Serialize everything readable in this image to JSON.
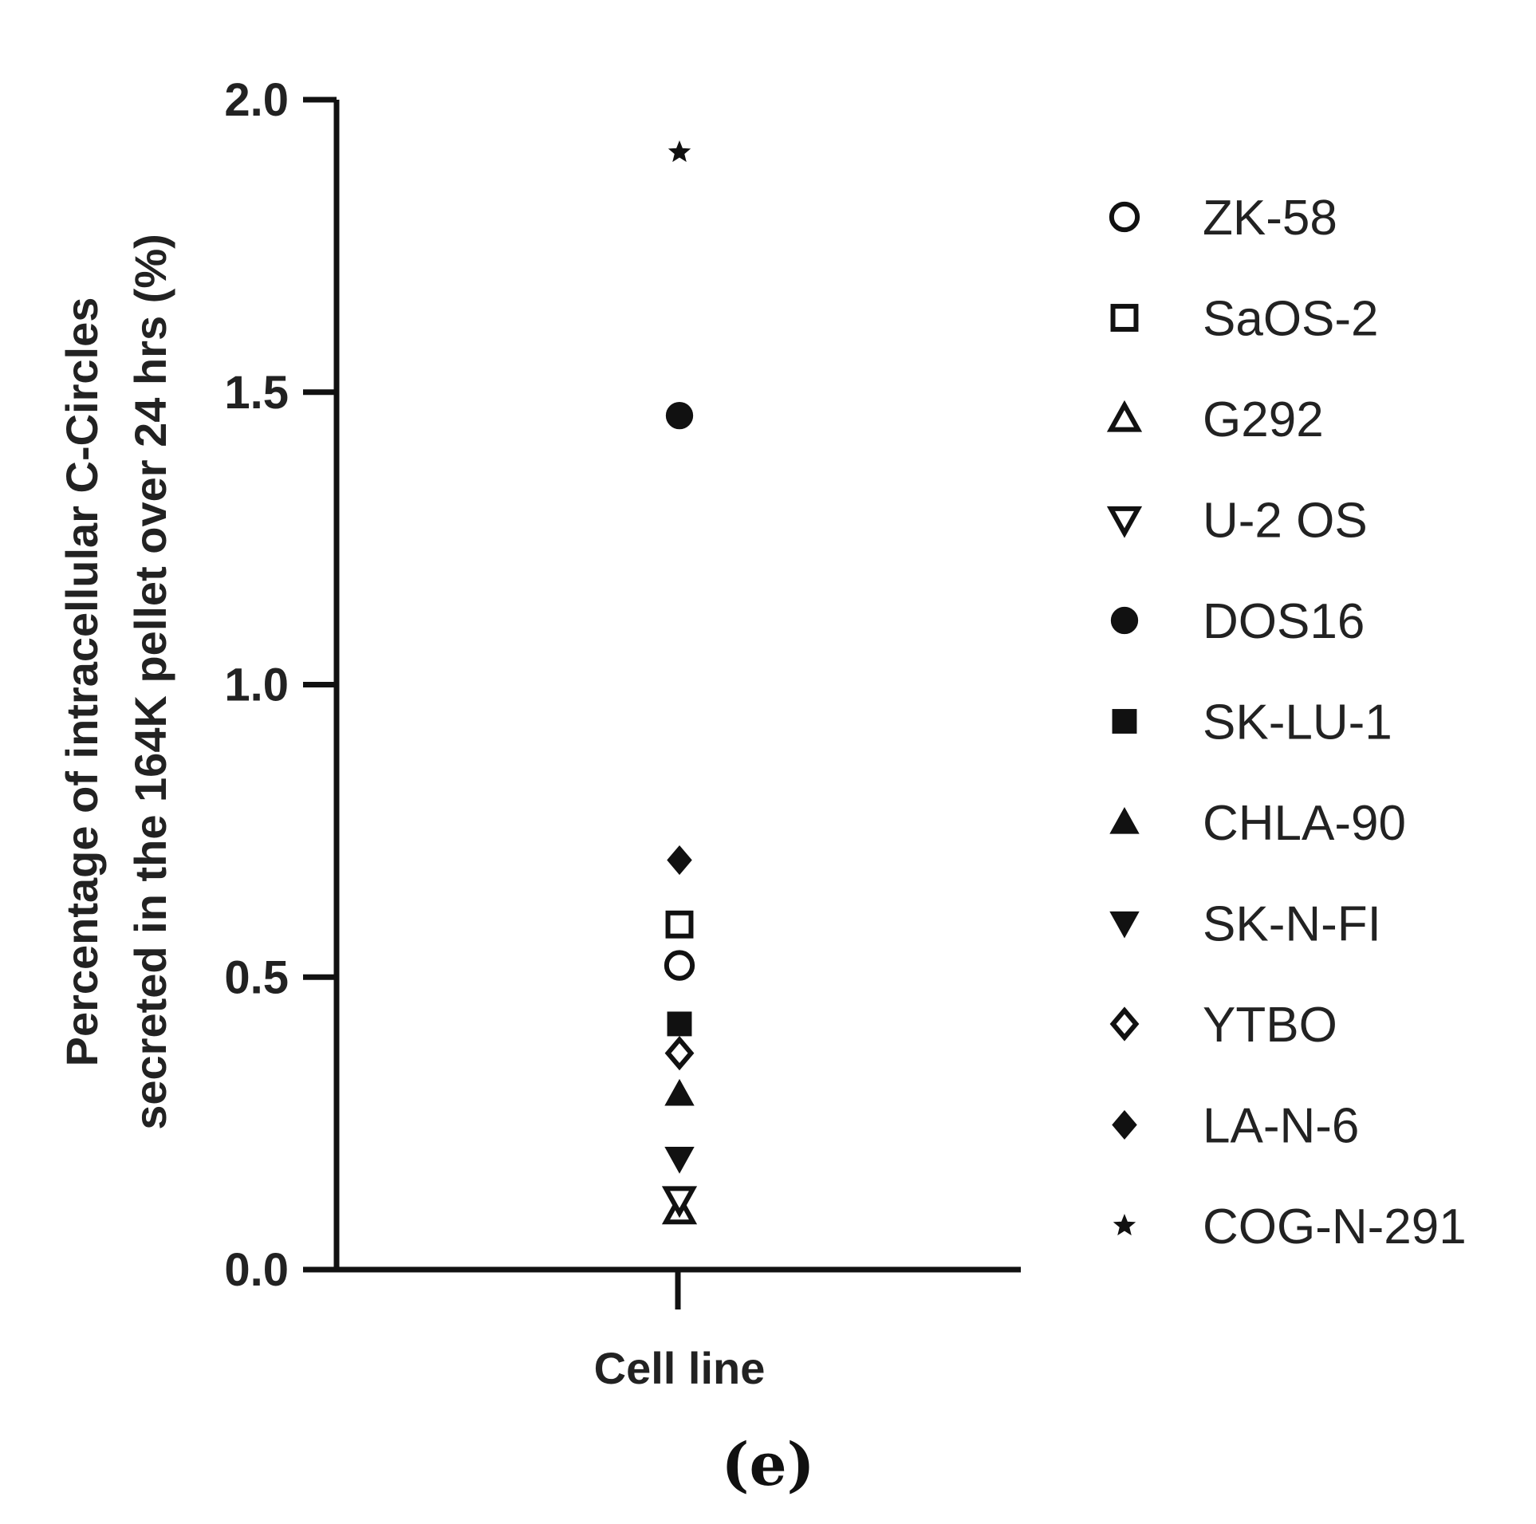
{
  "chart_data": {
    "type": "scatter",
    "title": "",
    "ylabel_lines": [
      "Percentage of intracellular C-Circles",
      "secreted in the 164K pellet over 24 hrs (%)"
    ],
    "xlabel": "Cell line",
    "ylim": [
      0,
      2.0
    ],
    "yticks": [
      "0.0",
      "0.5",
      "1.0",
      "1.5",
      "2.0"
    ],
    "grid": false,
    "legend_position": "right",
    "series": [
      {
        "name": "ZK-58",
        "marker": "circle-open",
        "values": [
          0.52
        ]
      },
      {
        "name": "SaOS-2",
        "marker": "square-open",
        "values": [
          0.59
        ]
      },
      {
        "name": "G292",
        "marker": "triangle-up-open",
        "values": [
          0.1
        ]
      },
      {
        "name": "U-2 OS",
        "marker": "triangle-down-open",
        "values": [
          0.12
        ]
      },
      {
        "name": "DOS16",
        "marker": "circle-filled",
        "values": [
          1.46
        ]
      },
      {
        "name": "SK-LU-1",
        "marker": "square-filled",
        "values": [
          0.42
        ]
      },
      {
        "name": "CHLA-90",
        "marker": "triangle-up-filled",
        "values": [
          0.3
        ]
      },
      {
        "name": "SK-N-FI",
        "marker": "triangle-down-filled",
        "values": [
          0.19
        ]
      },
      {
        "name": "YTBO",
        "marker": "diamond-open",
        "values": [
          0.37
        ]
      },
      {
        "name": "LA-N-6",
        "marker": "diamond-filled",
        "values": [
          0.7
        ]
      },
      {
        "name": "COG-N-291",
        "marker": "star-filled",
        "values": [
          1.91
        ]
      }
    ]
  },
  "panel_label": "(e)"
}
